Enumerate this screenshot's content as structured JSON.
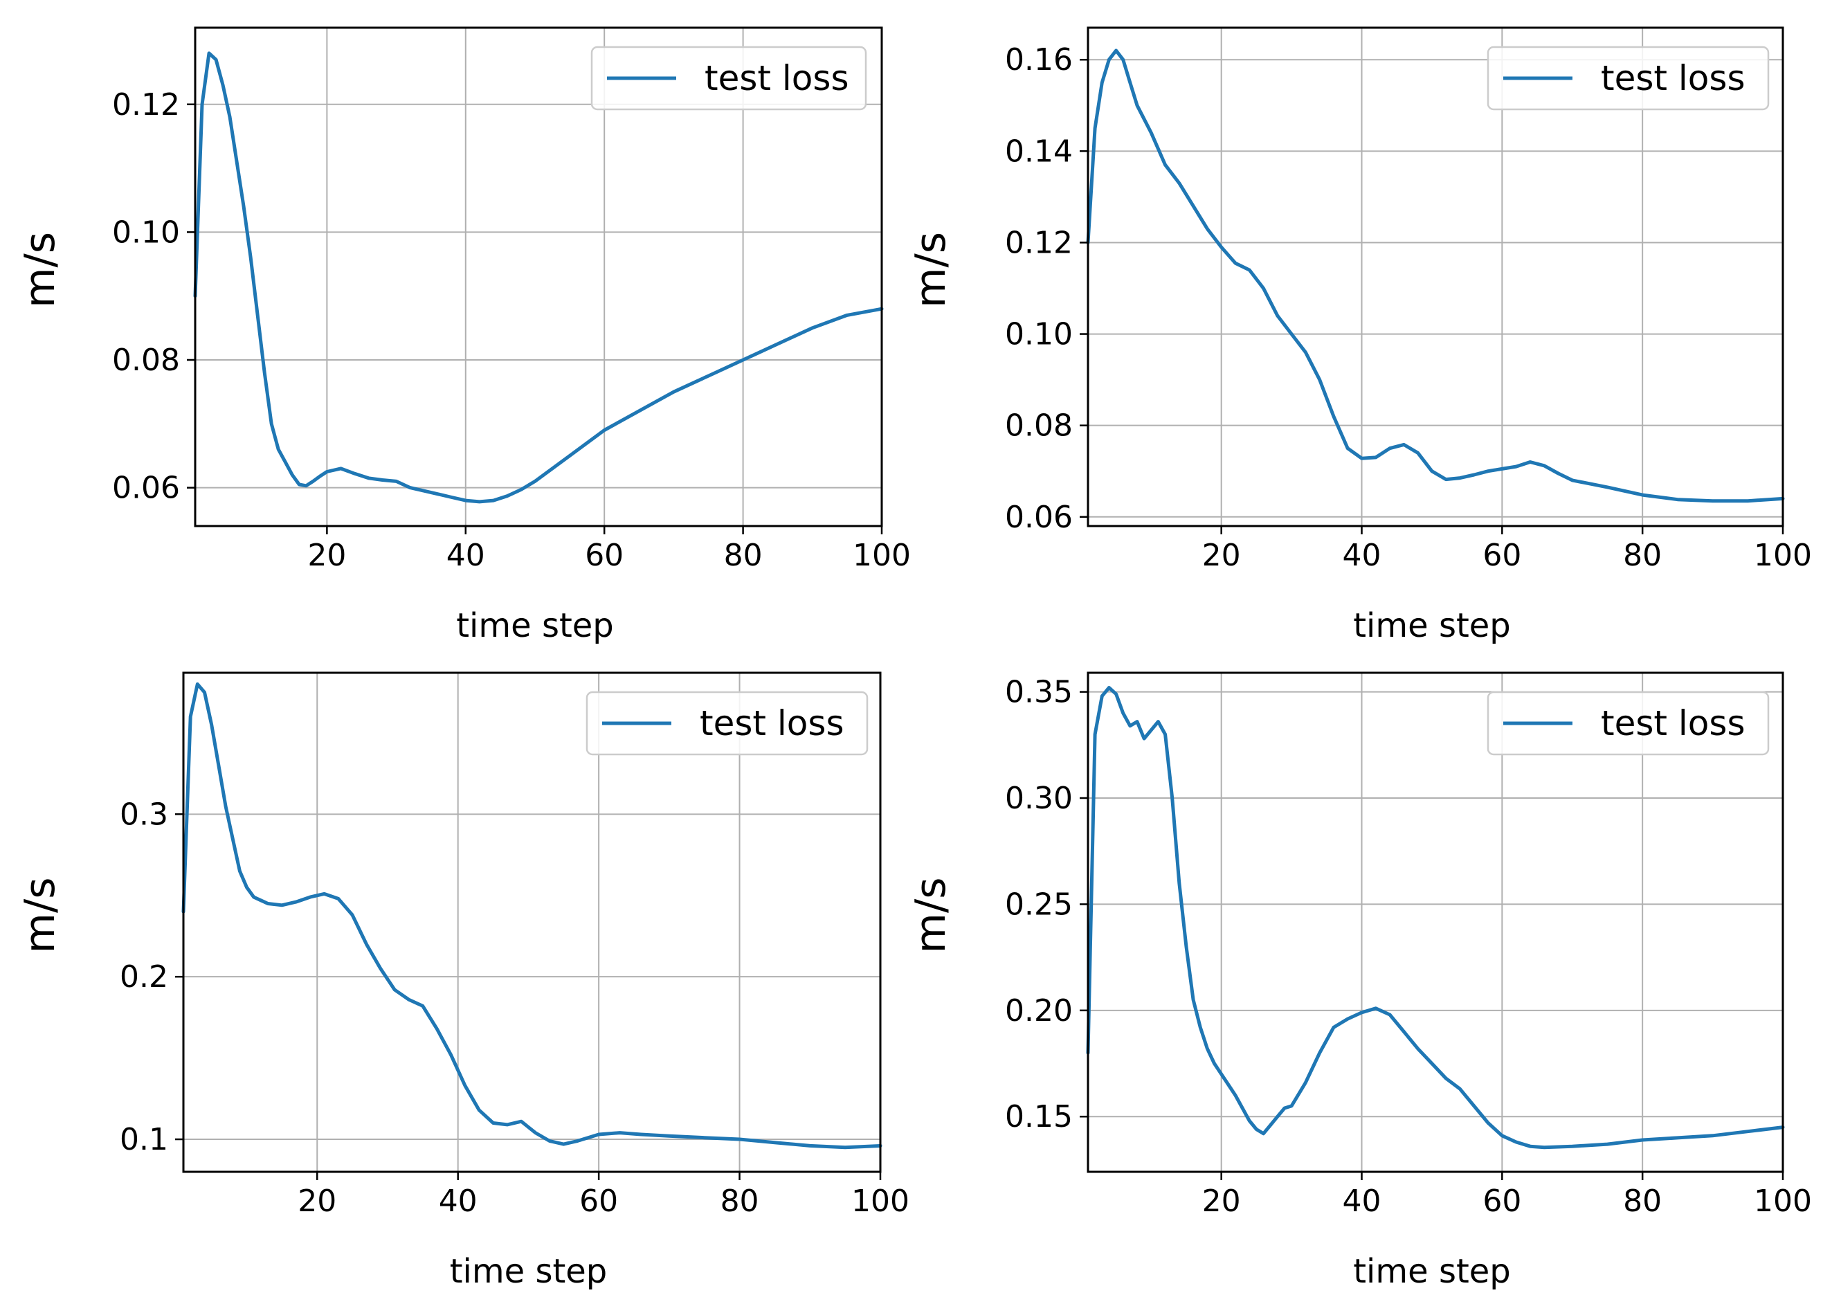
{
  "colors": {
    "line": "#1f77b4",
    "grid": "#b0b0b0",
    "axes": "#000000",
    "legend_border": "#cccccc"
  },
  "chart_data": [
    {
      "type": "line",
      "title": "",
      "xlabel": "time step",
      "ylabel": "m/s",
      "xlim": [
        1,
        100
      ],
      "ylim": [
        0.054,
        0.132
      ],
      "xticks": [
        20,
        40,
        60,
        80,
        100
      ],
      "xtick_labels": [
        "20",
        "40",
        "60",
        "80",
        "100"
      ],
      "yticks": [
        0.06,
        0.08,
        0.1,
        0.12
      ],
      "ytick_labels": [
        "0.06",
        "0.08",
        "0.10",
        "0.12"
      ],
      "grid": true,
      "legend": "top-right",
      "series": [
        {
          "name": "test loss",
          "x": [
            1,
            2,
            3,
            4,
            5,
            6,
            7,
            8,
            9,
            10,
            11,
            12,
            13,
            14,
            15,
            16,
            17,
            18,
            19,
            20,
            22,
            24,
            26,
            28,
            30,
            32,
            34,
            36,
            38,
            40,
            42,
            44,
            46,
            48,
            50,
            55,
            60,
            65,
            70,
            75,
            80,
            85,
            90,
            95,
            100
          ],
          "y": [
            0.09,
            0.12,
            0.128,
            0.127,
            0.123,
            0.118,
            0.111,
            0.104,
            0.096,
            0.087,
            0.078,
            0.07,
            0.066,
            0.064,
            0.062,
            0.0605,
            0.0603,
            0.061,
            0.0618,
            0.0625,
            0.063,
            0.0622,
            0.0615,
            0.0612,
            0.061,
            0.06,
            0.0595,
            0.059,
            0.0585,
            0.058,
            0.0578,
            0.058,
            0.0587,
            0.0597,
            0.061,
            0.065,
            0.069,
            0.072,
            0.075,
            0.0775,
            0.08,
            0.0825,
            0.085,
            0.087,
            0.088
          ]
        }
      ]
    },
    {
      "type": "line",
      "title": "",
      "xlabel": "time step",
      "ylabel": "m/s",
      "xlim": [
        1,
        100
      ],
      "ylim": [
        0.058,
        0.167
      ],
      "xticks": [
        20,
        40,
        60,
        80,
        100
      ],
      "xtick_labels": [
        "20",
        "40",
        "60",
        "80",
        "100"
      ],
      "yticks": [
        0.06,
        0.08,
        0.1,
        0.12,
        0.14,
        0.16
      ],
      "ytick_labels": [
        "0.06",
        "0.08",
        "0.10",
        "0.12",
        "0.14",
        "0.16"
      ],
      "grid": true,
      "legend": "top-right",
      "series": [
        {
          "name": "test loss",
          "x": [
            1,
            2,
            3,
            4,
            5,
            6,
            7,
            8,
            10,
            12,
            14,
            16,
            18,
            20,
            22,
            24,
            26,
            28,
            30,
            32,
            34,
            36,
            38,
            40,
            42,
            44,
            46,
            48,
            50,
            52,
            54,
            56,
            58,
            60,
            62,
            64,
            66,
            68,
            70,
            75,
            80,
            85,
            90,
            95,
            100
          ],
          "y": [
            0.12,
            0.145,
            0.155,
            0.16,
            0.162,
            0.16,
            0.155,
            0.15,
            0.144,
            0.137,
            0.133,
            0.128,
            0.123,
            0.119,
            0.1155,
            0.114,
            0.11,
            0.104,
            0.1,
            0.096,
            0.09,
            0.082,
            0.075,
            0.0728,
            0.073,
            0.075,
            0.0758,
            0.074,
            0.07,
            0.0682,
            0.0685,
            0.0692,
            0.07,
            0.0705,
            0.071,
            0.072,
            0.0712,
            0.0695,
            0.068,
            0.0665,
            0.0648,
            0.0638,
            0.0635,
            0.0635,
            0.064
          ]
        }
      ]
    },
    {
      "type": "line",
      "title": "",
      "xlabel": "time step",
      "ylabel": "m/s",
      "xlim": [
        1,
        100
      ],
      "ylim": [
        0.08,
        0.387
      ],
      "xticks": [
        20,
        40,
        60,
        80,
        100
      ],
      "xtick_labels": [
        "20",
        "40",
        "60",
        "80",
        "100"
      ],
      "yticks": [
        0.1,
        0.2,
        0.3
      ],
      "ytick_labels": [
        "0.1",
        "0.2",
        "0.3"
      ],
      "grid": true,
      "legend": "top-right",
      "series": [
        {
          "name": "test loss",
          "x": [
            1,
            2,
            3,
            4,
            5,
            6,
            7,
            8,
            9,
            10,
            11,
            12,
            13,
            15,
            17,
            19,
            21,
            23,
            25,
            27,
            29,
            31,
            33,
            35,
            37,
            39,
            41,
            43,
            45,
            47,
            49,
            51,
            53,
            55,
            57,
            60,
            63,
            66,
            70,
            75,
            80,
            85,
            90,
            95,
            100
          ],
          "y": [
            0.24,
            0.36,
            0.38,
            0.375,
            0.355,
            0.33,
            0.305,
            0.285,
            0.265,
            0.255,
            0.249,
            0.247,
            0.245,
            0.244,
            0.246,
            0.249,
            0.251,
            0.248,
            0.238,
            0.22,
            0.205,
            0.192,
            0.186,
            0.182,
            0.168,
            0.152,
            0.133,
            0.118,
            0.11,
            0.109,
            0.111,
            0.104,
            0.099,
            0.097,
            0.099,
            0.103,
            0.104,
            0.103,
            0.102,
            0.101,
            0.1,
            0.098,
            0.096,
            0.095,
            0.096
          ]
        }
      ]
    },
    {
      "type": "line",
      "title": "",
      "xlabel": "time step",
      "ylabel": "m/s",
      "xlim": [
        1,
        100
      ],
      "ylim": [
        0.124,
        0.359
      ],
      "xticks": [
        20,
        40,
        60,
        80,
        100
      ],
      "xtick_labels": [
        "20",
        "40",
        "60",
        "80",
        "100"
      ],
      "yticks": [
        0.15,
        0.2,
        0.25,
        0.3,
        0.35
      ],
      "ytick_labels": [
        "0.15",
        "0.20",
        "0.25",
        "0.30",
        "0.35"
      ],
      "grid": true,
      "legend": "top-right",
      "series": [
        {
          "name": "test loss",
          "x": [
            1,
            2,
            3,
            4,
            5,
            6,
            7,
            8,
            9,
            10,
            11,
            12,
            13,
            14,
            15,
            16,
            17,
            18,
            19,
            20,
            22,
            24,
            25,
            26,
            27,
            28,
            29,
            30,
            32,
            34,
            36,
            38,
            40,
            42,
            44,
            46,
            48,
            50,
            52,
            54,
            56,
            58,
            60,
            62,
            64,
            66,
            70,
            75,
            80,
            85,
            90,
            95,
            100
          ],
          "y": [
            0.18,
            0.33,
            0.348,
            0.352,
            0.349,
            0.34,
            0.334,
            0.336,
            0.328,
            0.332,
            0.336,
            0.33,
            0.3,
            0.26,
            0.23,
            0.205,
            0.192,
            0.182,
            0.175,
            0.17,
            0.16,
            0.148,
            0.144,
            0.142,
            0.146,
            0.15,
            0.154,
            0.155,
            0.166,
            0.18,
            0.192,
            0.196,
            0.199,
            0.201,
            0.198,
            0.19,
            0.182,
            0.175,
            0.168,
            0.163,
            0.155,
            0.147,
            0.141,
            0.138,
            0.136,
            0.1355,
            0.136,
            0.137,
            0.139,
            0.14,
            0.141,
            0.143,
            0.145
          ]
        }
      ]
    }
  ]
}
